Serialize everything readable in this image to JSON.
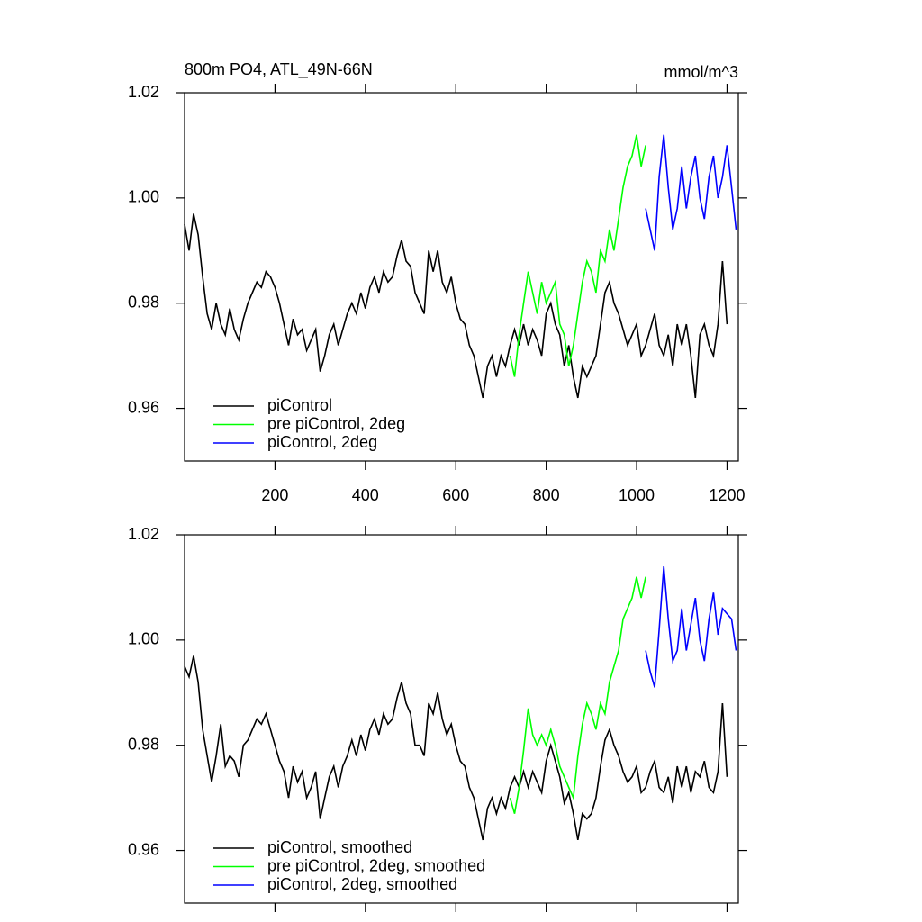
{
  "chart_data": [
    {
      "type": "line",
      "title": "800m PO4, ATL_49N-66N",
      "units": "mmol/m^3",
      "xlim": [
        0,
        1225
      ],
      "ylim": [
        0.95,
        1.02
      ],
      "xticks": [
        200,
        400,
        600,
        800,
        1000,
        1200
      ],
      "yticks": [
        0.96,
        0.98,
        {
          "value": 1,
          "label": "1.00"
        },
        1.02
      ],
      "legend": "lower left",
      "series": [
        {
          "name": "piControl",
          "color": "#000000",
          "x": [
            0,
            10,
            20,
            30,
            40,
            50,
            60,
            70,
            80,
            90,
            100,
            110,
            120,
            130,
            140,
            150,
            160,
            170,
            180,
            190,
            200,
            210,
            220,
            230,
            240,
            250,
            260,
            270,
            280,
            290,
            300,
            310,
            320,
            330,
            340,
            350,
            360,
            370,
            380,
            390,
            400,
            410,
            420,
            430,
            440,
            450,
            460,
            470,
            480,
            490,
            500,
            510,
            520,
            530,
            540,
            550,
            560,
            570,
            580,
            590,
            600,
            610,
            620,
            630,
            640,
            650,
            660,
            670,
            680,
            690,
            700,
            710,
            720,
            730,
            740,
            750,
            760,
            770,
            780,
            790,
            800,
            810,
            820,
            830,
            840,
            850,
            860,
            870,
            880,
            890,
            900,
            910,
            920,
            930,
            940,
            950,
            960,
            970,
            980,
            990,
            1000,
            1010,
            1020,
            1030,
            1040,
            1050,
            1060,
            1070,
            1080,
            1090,
            1100,
            1110,
            1120,
            1130,
            1140,
            1150,
            1160,
            1170,
            1180,
            1190,
            1200
          ],
          "values": [
            0.995,
            0.99,
            0.997,
            0.993,
            0.985,
            0.978,
            0.975,
            0.98,
            0.976,
            0.974,
            0.979,
            0.975,
            0.973,
            0.977,
            0.98,
            0.982,
            0.984,
            0.983,
            0.986,
            0.985,
            0.983,
            0.98,
            0.976,
            0.972,
            0.977,
            0.974,
            0.975,
            0.971,
            0.973,
            0.975,
            0.967,
            0.97,
            0.974,
            0.976,
            0.972,
            0.975,
            0.978,
            0.98,
            0.978,
            0.982,
            0.979,
            0.983,
            0.985,
            0.982,
            0.986,
            0.984,
            0.985,
            0.989,
            0.992,
            0.988,
            0.987,
            0.982,
            0.98,
            0.978,
            0.99,
            0.986,
            0.99,
            0.984,
            0.982,
            0.985,
            0.98,
            0.977,
            0.976,
            0.972,
            0.97,
            0.966,
            0.962,
            0.968,
            0.97,
            0.966,
            0.97,
            0.968,
            0.972,
            0.975,
            0.972,
            0.976,
            0.972,
            0.975,
            0.973,
            0.97,
            0.978,
            0.98,
            0.976,
            0.974,
            0.968,
            0.972,
            0.966,
            0.962,
            0.968,
            0.966,
            0.968,
            0.97,
            0.976,
            0.982,
            0.984,
            0.98,
            0.978,
            0.975,
            0.972,
            0.974,
            0.976,
            0.97,
            0.972,
            0.975,
            0.978,
            0.972,
            0.97,
            0.974,
            0.968,
            0.976,
            0.972,
            0.976,
            0.97,
            0.962,
            0.974,
            0.976,
            0.972,
            0.97,
            0.976,
            0.988,
            0.976
          ]
        },
        {
          "name": "pre piControl, 2deg",
          "color": "#00ff00",
          "x": [
            720,
            730,
            740,
            750,
            760,
            770,
            780,
            790,
            800,
            810,
            820,
            830,
            840,
            850,
            860,
            870,
            880,
            890,
            900,
            910,
            920,
            930,
            940,
            950,
            960,
            970,
            980,
            990,
            1000,
            1010,
            1020
          ],
          "values": [
            0.97,
            0.966,
            0.974,
            0.98,
            0.986,
            0.982,
            0.978,
            0.984,
            0.98,
            0.982,
            0.984,
            0.976,
            0.974,
            0.968,
            0.972,
            0.978,
            0.984,
            0.988,
            0.986,
            0.982,
            0.99,
            0.988,
            0.994,
            0.99,
            0.996,
            1.002,
            1.006,
            1.008,
            1.012,
            1.006,
            1.01
          ]
        },
        {
          "name": "piControl, 2deg",
          "color": "#0000ff",
          "x": [
            1020,
            1030,
            1040,
            1050,
            1060,
            1070,
            1080,
            1090,
            1100,
            1110,
            1120,
            1130,
            1140,
            1150,
            1160,
            1170,
            1180,
            1190,
            1200,
            1210,
            1220
          ],
          "values": [
            0.998,
            0.994,
            0.99,
            1.004,
            1.012,
            1.002,
            0.994,
            0.998,
            1.006,
            0.998,
            1.004,
            1.008,
            1.0,
            0.996,
            1.004,
            1.008,
            1.0,
            1.004,
            1.01,
            1.002,
            0.994
          ]
        }
      ]
    },
    {
      "type": "line",
      "xlim": [
        0,
        1225
      ],
      "ylim": [
        0.95,
        1.02
      ],
      "yticks": [
        0.96,
        0.98,
        {
          "value": 1,
          "label": "1.00"
        },
        1.02
      ],
      "legend": "lower left",
      "series": [
        {
          "name": "piControl, smoothed",
          "color": "#000000",
          "x": [
            0,
            10,
            20,
            30,
            40,
            50,
            60,
            70,
            80,
            90,
            100,
            110,
            120,
            130,
            140,
            150,
            160,
            170,
            180,
            190,
            200,
            210,
            220,
            230,
            240,
            250,
            260,
            270,
            280,
            290,
            300,
            310,
            320,
            330,
            340,
            350,
            360,
            370,
            380,
            390,
            400,
            410,
            420,
            430,
            440,
            450,
            460,
            470,
            480,
            490,
            500,
            510,
            520,
            530,
            540,
            550,
            560,
            570,
            580,
            590,
            600,
            610,
            620,
            630,
            640,
            650,
            660,
            670,
            680,
            690,
            700,
            710,
            720,
            730,
            740,
            750,
            760,
            770,
            780,
            790,
            800,
            810,
            820,
            830,
            840,
            850,
            860,
            870,
            880,
            890,
            900,
            910,
            920,
            930,
            940,
            950,
            960,
            970,
            980,
            990,
            1000,
            1010,
            1020,
            1030,
            1040,
            1050,
            1060,
            1070,
            1080,
            1090,
            1100,
            1110,
            1120,
            1130,
            1140,
            1150,
            1160,
            1170,
            1180,
            1190,
            1200
          ],
          "values": [
            0.995,
            0.993,
            0.997,
            0.992,
            0.983,
            0.978,
            0.973,
            0.978,
            0.984,
            0.976,
            0.978,
            0.977,
            0.974,
            0.98,
            0.981,
            0.983,
            0.985,
            0.984,
            0.986,
            0.983,
            0.98,
            0.977,
            0.975,
            0.97,
            0.976,
            0.973,
            0.975,
            0.97,
            0.972,
            0.975,
            0.966,
            0.97,
            0.974,
            0.976,
            0.972,
            0.976,
            0.978,
            0.981,
            0.978,
            0.982,
            0.979,
            0.983,
            0.985,
            0.982,
            0.986,
            0.984,
            0.985,
            0.989,
            0.992,
            0.988,
            0.986,
            0.98,
            0.98,
            0.978,
            0.988,
            0.986,
            0.99,
            0.985,
            0.982,
            0.984,
            0.98,
            0.977,
            0.976,
            0.972,
            0.97,
            0.966,
            0.962,
            0.968,
            0.97,
            0.967,
            0.97,
            0.968,
            0.972,
            0.974,
            0.972,
            0.975,
            0.972,
            0.975,
            0.973,
            0.971,
            0.977,
            0.98,
            0.977,
            0.974,
            0.969,
            0.971,
            0.967,
            0.962,
            0.967,
            0.966,
            0.967,
            0.97,
            0.976,
            0.981,
            0.983,
            0.98,
            0.978,
            0.975,
            0.973,
            0.974,
            0.976,
            0.971,
            0.972,
            0.975,
            0.977,
            0.972,
            0.971,
            0.974,
            0.969,
            0.976,
            0.972,
            0.976,
            0.971,
            0.975,
            0.974,
            0.977,
            0.972,
            0.971,
            0.975,
            0.988,
            0.974
          ]
        },
        {
          "name": "pre piControl, 2deg, smoothed",
          "color": "#00ff00",
          "x": [
            720,
            730,
            740,
            750,
            760,
            770,
            780,
            790,
            800,
            810,
            820,
            830,
            840,
            850,
            860,
            870,
            880,
            890,
            900,
            910,
            920,
            930,
            940,
            950,
            960,
            970,
            980,
            990,
            1000,
            1010,
            1020
          ],
          "values": [
            0.97,
            0.967,
            0.972,
            0.979,
            0.987,
            0.982,
            0.98,
            0.982,
            0.98,
            0.983,
            0.98,
            0.976,
            0.974,
            0.972,
            0.97,
            0.978,
            0.984,
            0.988,
            0.986,
            0.983,
            0.988,
            0.986,
            0.992,
            0.995,
            0.998,
            1.004,
            1.006,
            1.008,
            1.012,
            1.008,
            1.012
          ]
        },
        {
          "name": "piControl, 2deg, smoothed",
          "color": "#0000ff",
          "x": [
            1020,
            1030,
            1040,
            1050,
            1060,
            1070,
            1080,
            1090,
            1100,
            1110,
            1120,
            1130,
            1140,
            1150,
            1160,
            1170,
            1180,
            1190,
            1200,
            1210,
            1220
          ],
          "values": [
            0.998,
            0.994,
            0.991,
            1.002,
            1.014,
            1.004,
            0.996,
            0.998,
            1.006,
            0.998,
            1.003,
            1.008,
            1.0,
            0.996,
            1.004,
            1.009,
            1.001,
            1.006,
            1.005,
            1.004,
            0.998
          ]
        }
      ]
    }
  ]
}
